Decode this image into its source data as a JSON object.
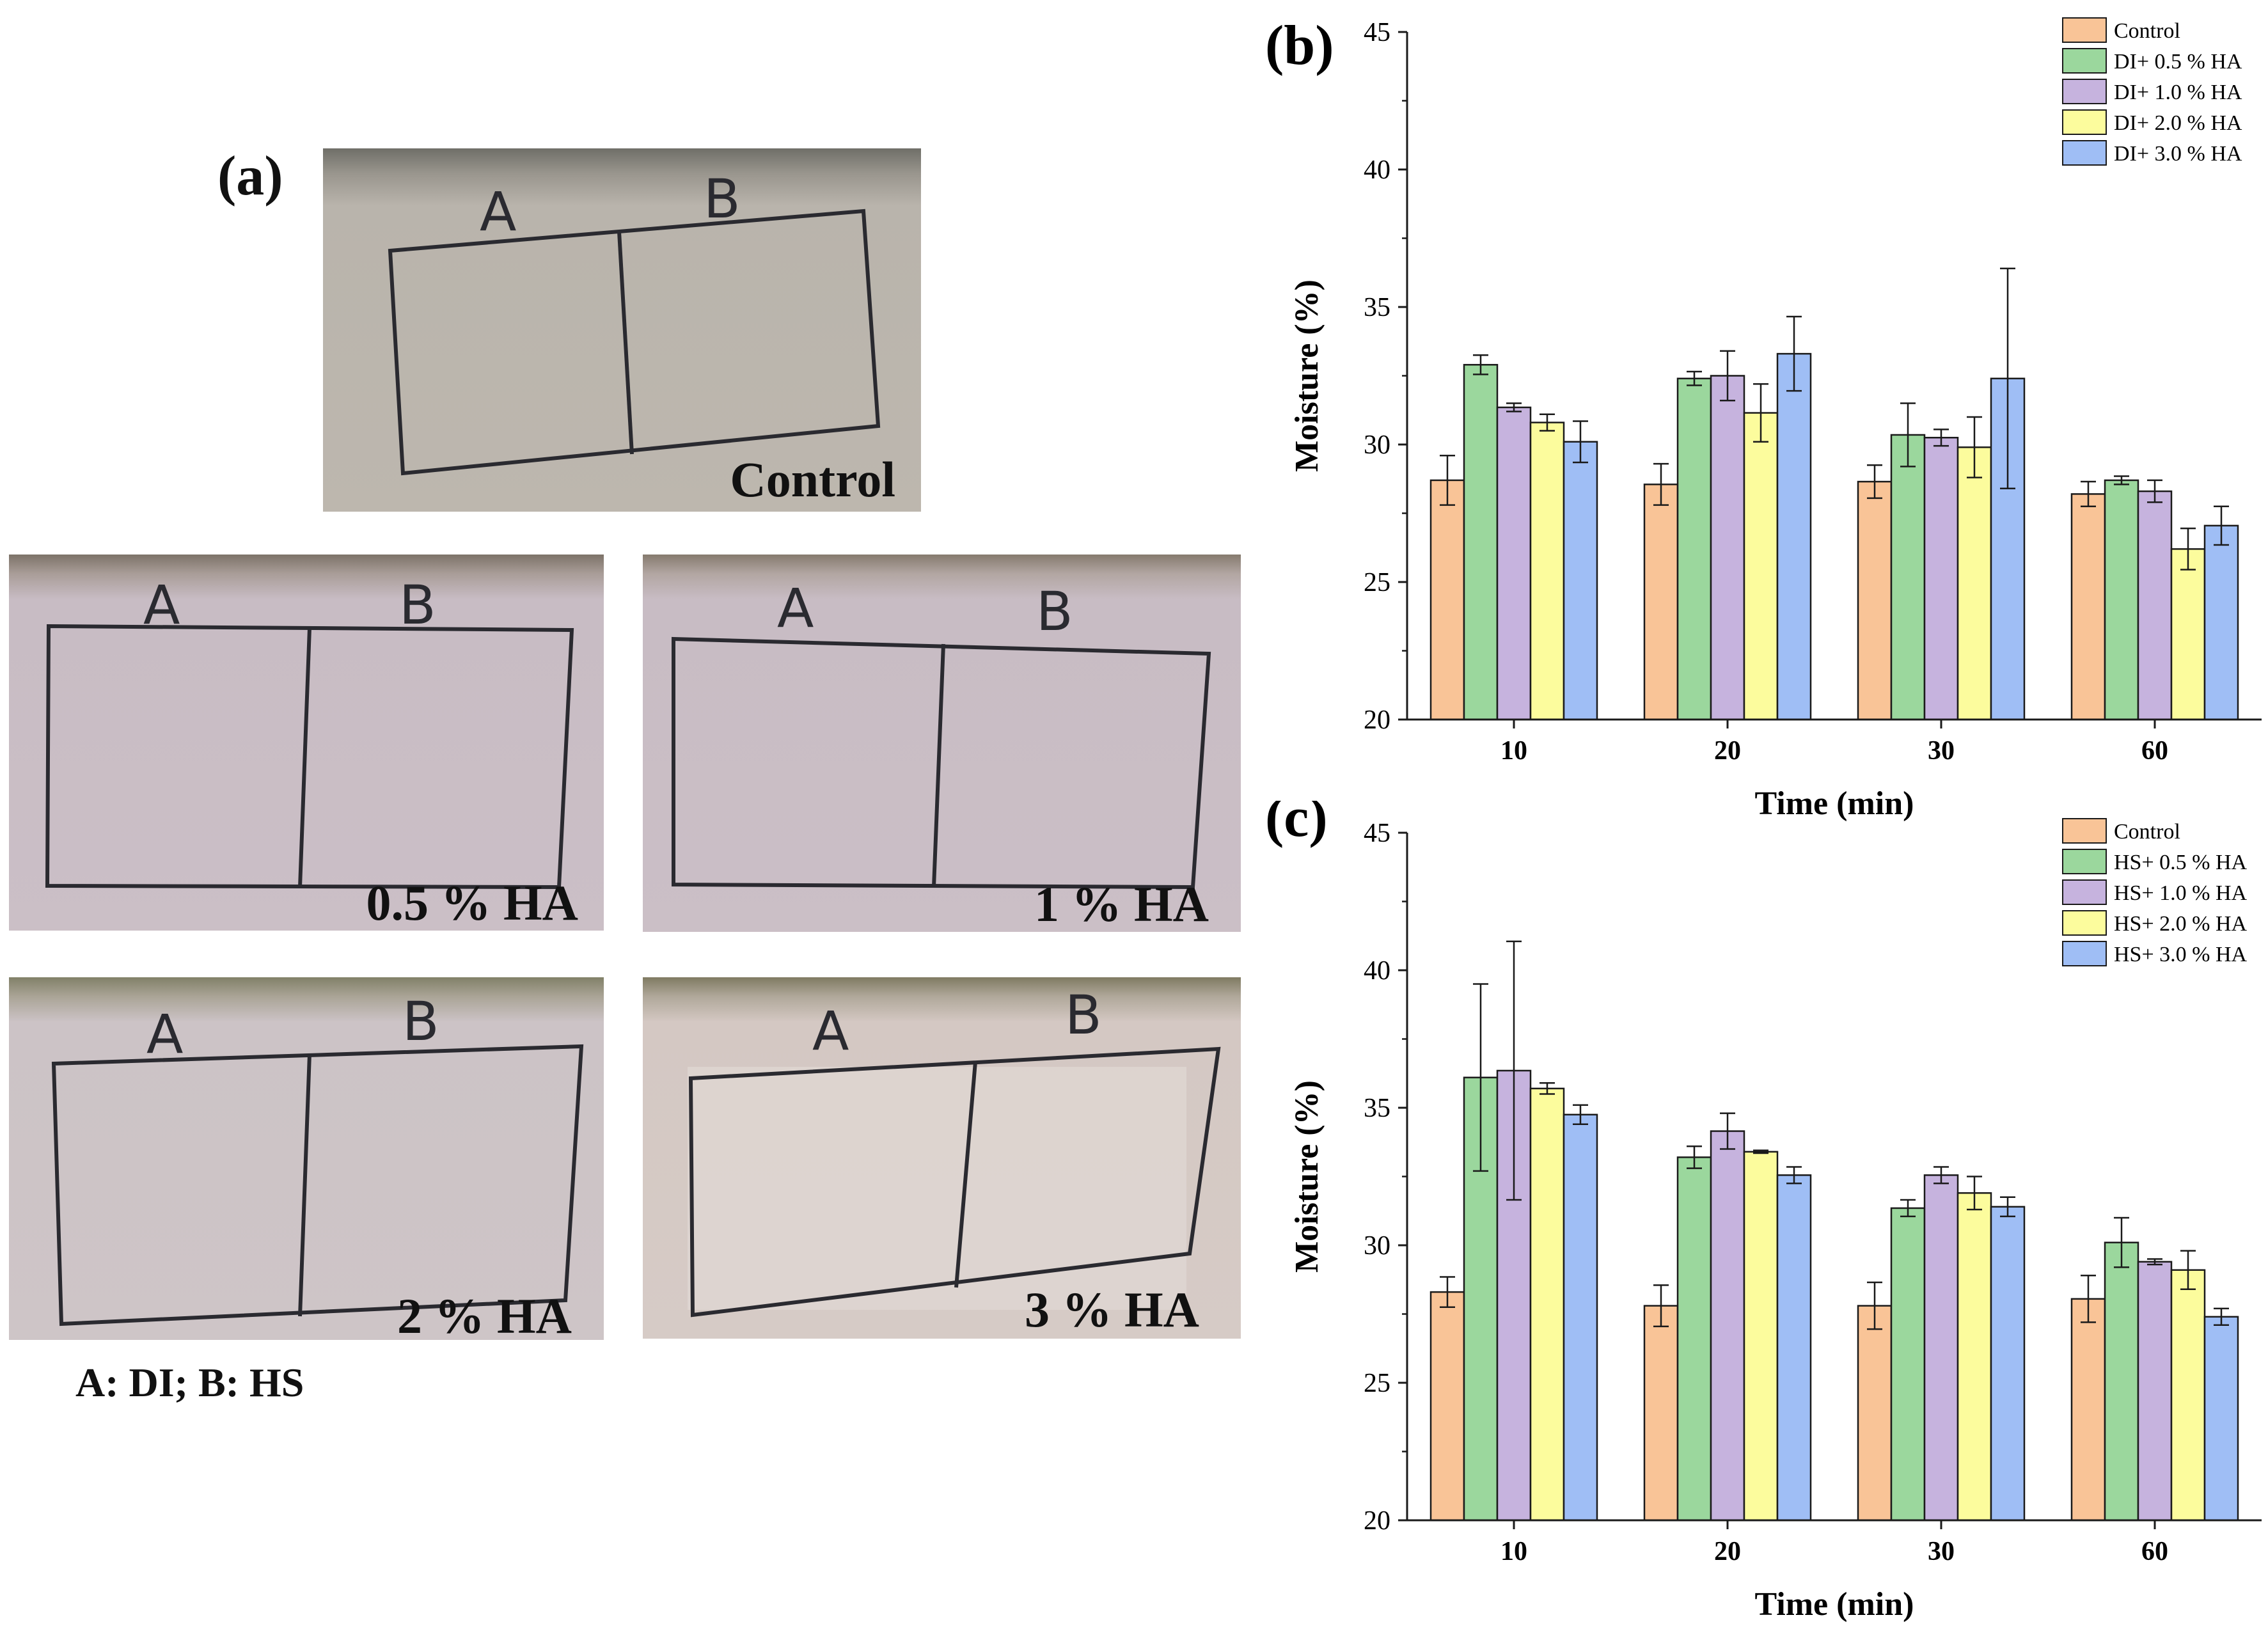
{
  "panel_a": {
    "label": "(a)",
    "photos": [
      {
        "caption": "Control",
        "zone_a": "A",
        "zone_b": "B"
      },
      {
        "caption": "0.5 % HA",
        "zone_a": "A",
        "zone_b": "B"
      },
      {
        "caption": "1 % HA",
        "zone_a": "A",
        "zone_b": "B"
      },
      {
        "caption": "2 % HA",
        "zone_a": "A",
        "zone_b": "B"
      },
      {
        "caption": "3 % HA",
        "zone_a": "A",
        "zone_b": "B"
      }
    ],
    "note": "A: DI; B: HS",
    "colors": {
      "skin_control": "#b9b4ac",
      "skin": "#c8bcc4"
    }
  },
  "chart_data": [
    {
      "panel_label": "(b)",
      "type": "bar",
      "xlabel": "Time (min)",
      "ylabel": "Moisture (%)",
      "ylim": [
        20,
        45
      ],
      "yticks": [
        20,
        25,
        30,
        35,
        40,
        45
      ],
      "categories": [
        "10",
        "20",
        "30",
        "60"
      ],
      "legend_position": "top-right",
      "series": [
        {
          "name": "Control",
          "color": "#f9c497",
          "values": [
            28.7,
            28.55,
            28.65,
            28.2
          ],
          "errors": [
            0.9,
            0.75,
            0.6,
            0.45
          ]
        },
        {
          "name": "DI+ 0.5 % HA",
          "color": "#9bd79d",
          "values": [
            32.9,
            32.4,
            30.35,
            28.7
          ],
          "errors": [
            0.35,
            0.25,
            1.15,
            0.15
          ]
        },
        {
          "name": "DI+ 1.0 % HA",
          "color": "#c6b3de",
          "values": [
            31.35,
            32.5,
            30.25,
            28.3
          ],
          "errors": [
            0.15,
            0.9,
            0.3,
            0.4
          ]
        },
        {
          "name": "DI+ 2.0 % HA",
          "color": "#fcfc9d",
          "values": [
            30.8,
            31.15,
            29.9,
            26.2
          ],
          "errors": [
            0.3,
            1.05,
            1.1,
            0.75
          ]
        },
        {
          "name": "DI+ 3.0 % HA",
          "color": "#9fbef5",
          "values": [
            30.1,
            33.3,
            32.4,
            27.05
          ],
          "errors": [
            0.75,
            1.35,
            4.0,
            0.7
          ]
        }
      ]
    },
    {
      "panel_label": "(c)",
      "type": "bar",
      "xlabel": "Time (min)",
      "ylabel": "Moisture (%)",
      "ylim": [
        20,
        45
      ],
      "yticks": [
        20,
        25,
        30,
        35,
        40,
        45
      ],
      "categories": [
        "10",
        "20",
        "30",
        "60"
      ],
      "legend_position": "top-right",
      "series": [
        {
          "name": "Control",
          "color": "#f9c497",
          "values": [
            28.3,
            27.8,
            27.8,
            28.05
          ],
          "errors": [
            0.55,
            0.75,
            0.85,
            0.85
          ]
        },
        {
          "name": "HS+ 0.5 % HA",
          "color": "#9bd79d",
          "values": [
            36.1,
            33.2,
            31.35,
            30.1
          ],
          "errors": [
            3.4,
            0.4,
            0.3,
            0.9
          ]
        },
        {
          "name": "HS+ 1.0 % HA",
          "color": "#c6b3de",
          "values": [
            36.35,
            34.15,
            32.55,
            29.4
          ],
          "errors": [
            4.7,
            0.65,
            0.3,
            0.1
          ]
        },
        {
          "name": "HS+ 2.0 % HA",
          "color": "#fcfc9d",
          "values": [
            35.7,
            33.4,
            31.9,
            29.1
          ],
          "errors": [
            0.2,
            0.05,
            0.6,
            0.7
          ]
        },
        {
          "name": "HS+ 3.0 % HA",
          "color": "#9fbef5",
          "values": [
            34.75,
            32.55,
            31.4,
            27.4
          ],
          "errors": [
            0.35,
            0.3,
            0.35,
            0.3
          ]
        }
      ]
    }
  ]
}
